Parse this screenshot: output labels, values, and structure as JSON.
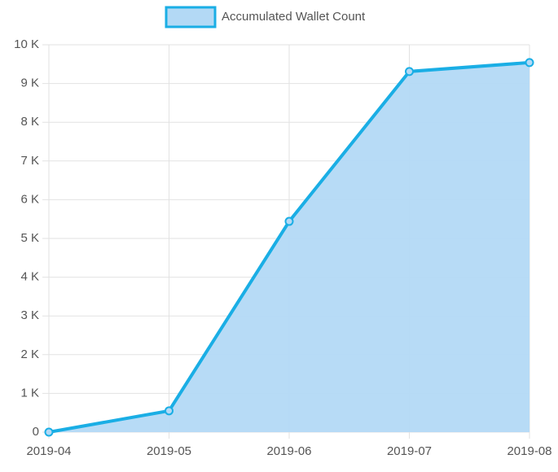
{
  "chart_data": {
    "type": "line",
    "categories": [
      "2019-04",
      "2019-05",
      "2019-06",
      "2019-07",
      "2019-08"
    ],
    "series": [
      {
        "name": "Accumulated Wallet Count",
        "color": "#1aaee5",
        "fill": "#b3d9f5",
        "values": [
          0,
          550,
          5440,
          9310,
          9540
        ]
      }
    ],
    "ylim": [
      0,
      10000
    ],
    "yticks": [
      0,
      {
        "value": 1000,
        "label": "1 K"
      },
      {
        "value": 2000,
        "label": "2 K"
      },
      {
        "value": 3000,
        "label": "3 K"
      },
      {
        "value": 4000,
        "label": "4 K"
      },
      {
        "value": 5000,
        "label": "5 K"
      },
      {
        "value": 6000,
        "label": "6 K"
      },
      {
        "value": 7000,
        "label": "7 K"
      },
      {
        "value": 8000,
        "label": "8 K"
      },
      {
        "value": 9000,
        "label": "9 K"
      },
      {
        "value": 10000,
        "label": "10 K"
      }
    ],
    "grid": true,
    "legend": "top"
  }
}
